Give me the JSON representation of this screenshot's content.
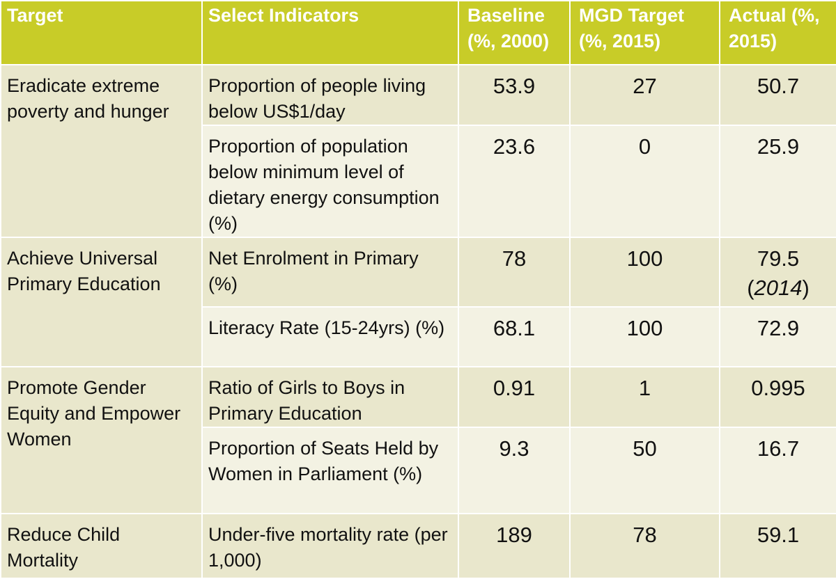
{
  "headers": {
    "target": "Target",
    "indicators": "Select Indicators",
    "baseline": "Baseline (%, 2000)",
    "mdg_target": "MGD Target (%, 2015)",
    "actual": "Actual (%, 2015)"
  },
  "rows": [
    {
      "target": "Eradicate extreme poverty and hunger",
      "indicator": "Proportion of people living below US$1/day",
      "baseline": "53.9",
      "mdg_target": "27",
      "actual": "50.7"
    },
    {
      "indicator": "Proportion of population below minimum level of dietary energy consumption (%)",
      "baseline": "23.6",
      "mdg_target": "0",
      "actual": "25.9"
    },
    {
      "target": "Achieve Universal Primary Education",
      "indicator": "Net Enrolment in Primary (%)",
      "baseline": "78",
      "mdg_target": "100",
      "actual": "79.5",
      "actual_note": "2014"
    },
    {
      "indicator": "Literacy Rate (15-24yrs) (%)",
      "baseline": "68.1",
      "mdg_target": "100",
      "actual": "72.9"
    },
    {
      "target": "Promote Gender Equity and Empower Women",
      "indicator": "Ratio of Girls to Boys in Primary Education",
      "baseline": "0.91",
      "mdg_target": "1",
      "actual": "0.995"
    },
    {
      "indicator": "Proportion of Seats Held by Women in Parliament (%)",
      "baseline": "9.3",
      "mdg_target": "50",
      "actual": "16.7"
    },
    {
      "target": "Reduce Child Mortality",
      "indicator": "Under-five mortality rate (per 1,000)",
      "baseline": "189",
      "mdg_target": "78",
      "actual": "59.1"
    }
  ]
}
